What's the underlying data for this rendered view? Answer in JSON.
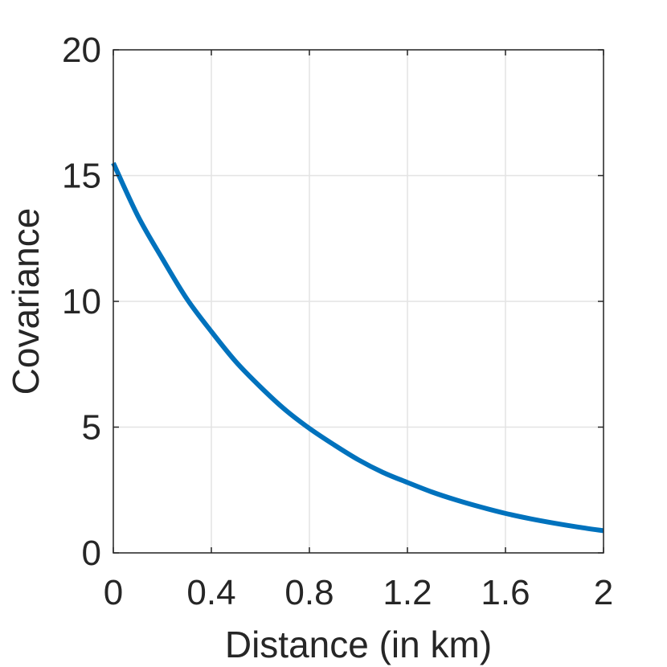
{
  "chart_data": {
    "type": "line",
    "title": "",
    "xlabel": "Distance (in km)",
    "ylabel": "Covariance",
    "xlim": [
      0,
      2
    ],
    "ylim": [
      0,
      20
    ],
    "xticks": [
      0,
      0.4,
      0.8,
      1.2,
      1.6,
      2
    ],
    "xtick_labels": [
      "0",
      "0.4",
      "0.8",
      "1.2",
      "1.6",
      "2"
    ],
    "yticks": [
      0,
      5,
      10,
      15,
      20
    ],
    "ytick_labels": [
      "0",
      "5",
      "10",
      "15",
      "20"
    ],
    "grid": true,
    "series": [
      {
        "color": "#0072bd",
        "x": [
          0,
          0.1,
          0.2,
          0.3,
          0.4,
          0.5,
          0.6,
          0.7,
          0.8,
          0.9,
          1.0,
          1.1,
          1.2,
          1.3,
          1.4,
          1.5,
          1.6,
          1.7,
          1.8,
          1.9,
          2.0
        ],
        "y": [
          15.5,
          13.4,
          11.7,
          10.1,
          8.8,
          7.6,
          6.6,
          5.7,
          4.95,
          4.3,
          3.7,
          3.2,
          2.8,
          2.42,
          2.1,
          1.82,
          1.57,
          1.36,
          1.18,
          1.02,
          0.88
        ]
      }
    ]
  }
}
